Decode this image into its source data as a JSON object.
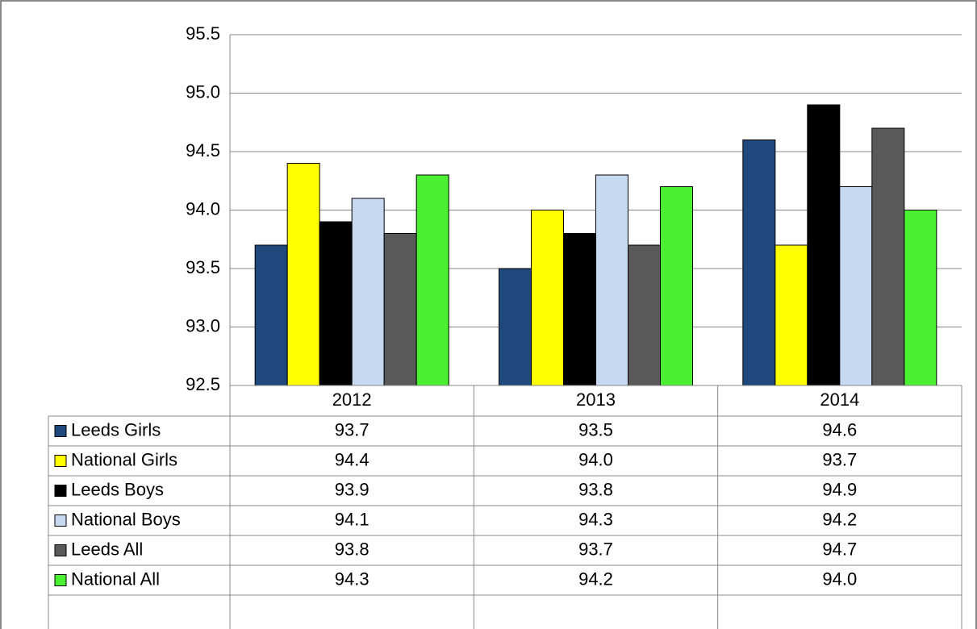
{
  "chart_data": {
    "type": "bar",
    "categories": [
      "2012",
      "2013",
      "2014"
    ],
    "series": [
      {
        "name": "Leeds Girls",
        "color": "#1f497d",
        "values": [
          93.7,
          93.5,
          94.6
        ],
        "value_labels": [
          "93.7",
          "93.5",
          "94.6"
        ]
      },
      {
        "name": "National Girls",
        "color": "#ffff00",
        "values": [
          94.4,
          94.0,
          93.7
        ],
        "value_labels": [
          "94.4",
          "94.0",
          "93.7"
        ]
      },
      {
        "name": "Leeds Boys",
        "color": "#000000",
        "values": [
          93.9,
          93.8,
          94.9
        ],
        "value_labels": [
          "93.9",
          "93.8",
          "94.9"
        ]
      },
      {
        "name": "National Boys",
        "color": "#c6d9f1",
        "values": [
          94.1,
          94.3,
          94.2
        ],
        "value_labels": [
          "94.1",
          "94.3",
          "94.2"
        ]
      },
      {
        "name": "Leeds All",
        "color": "#595959",
        "values": [
          93.8,
          93.7,
          94.7
        ],
        "value_labels": [
          "93.8",
          "93.7",
          "94.7"
        ]
      },
      {
        "name": "National All",
        "color": "#4cf032",
        "values": [
          94.3,
          94.2,
          94.0
        ],
        "value_labels": [
          "94.3",
          "94.2",
          "94.0"
        ]
      }
    ],
    "ylim": [
      92.5,
      95.5
    ],
    "yticks": [
      {
        "value": 92.5,
        "label": "92.5"
      },
      {
        "value": 93,
        "label": "93.0"
      },
      {
        "value": 93.5,
        "label": "93.5"
      },
      {
        "value": 94,
        "label": "94.0"
      },
      {
        "value": 94.5,
        "label": "94.5"
      },
      {
        "value": 95,
        "label": "95.0"
      },
      {
        "value": 95.5,
        "label": "95.5"
      }
    ],
    "grid": true
  }
}
